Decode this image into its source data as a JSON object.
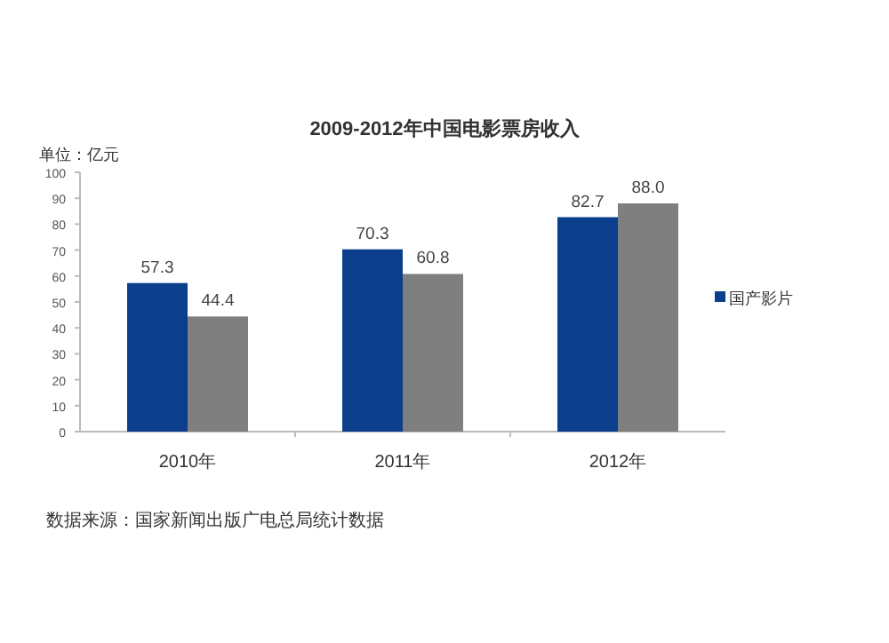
{
  "chart_data": {
    "type": "bar",
    "title": "2009-2012年中国电影票房收入",
    "ylabel": "单位：亿元",
    "categories": [
      "2010年",
      "2011年",
      "2012年"
    ],
    "series": [
      {
        "name": "国产影片",
        "color": "#0b3f8c",
        "values": [
          57.3,
          70.3,
          82.7
        ]
      },
      {
        "color": "#7f7f7f",
        "values": [
          44.4,
          60.8,
          88.0
        ]
      }
    ],
    "value_labels": [
      [
        "57.3",
        "70.3",
        "82.7"
      ],
      [
        "44.4",
        "60.8",
        "88.0"
      ]
    ],
    "ylim": [
      0,
      100
    ],
    "yticks": [
      0,
      10,
      20,
      30,
      40,
      50,
      60,
      70,
      80,
      90,
      100
    ],
    "legend": "right",
    "grid": false,
    "annotations": [
      "数据来源：国家新闻出版广电总局统计数据"
    ]
  }
}
